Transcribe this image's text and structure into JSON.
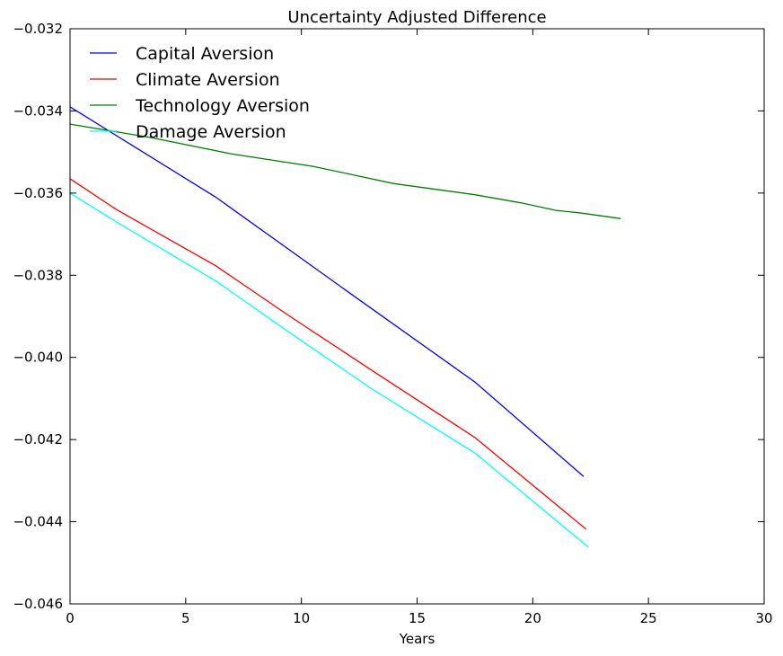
{
  "chart_data": {
    "type": "line",
    "title": "Uncertainty Adjusted Difference",
    "xlabel": "Years",
    "ylabel": "",
    "xlim": [
      0,
      30
    ],
    "ylim": [
      -0.046,
      -0.032
    ],
    "xticks": [
      0,
      5,
      10,
      15,
      20,
      25,
      30
    ],
    "xtick_labels": [
      "0",
      "5",
      "10",
      "15",
      "20",
      "25",
      "30"
    ],
    "yticks": [
      -0.046,
      -0.044,
      -0.042,
      -0.04,
      -0.038,
      -0.036,
      -0.034,
      -0.032
    ],
    "ytick_labels": [
      "−0.046",
      "−0.044",
      "−0.042",
      "−0.040",
      "−0.038",
      "−0.036",
      "−0.034",
      "−0.032"
    ],
    "grid": false,
    "legend_position": "top-left",
    "series": [
      {
        "name": "Capital Aversion",
        "color": "#0000ff",
        "x": [
          0,
          6.3,
          12.5,
          17.5,
          22.2
        ],
        "y": [
          -0.0339,
          -0.0361,
          -0.0386,
          -0.0406,
          -0.0429
        ]
      },
      {
        "name": "Climate Aversion",
        "color": "#ff0000",
        "x": [
          0,
          2.0,
          6.3,
          9.5,
          13.0,
          17.5,
          22.3
        ],
        "y": [
          -0.03565,
          -0.0364,
          -0.03777,
          -0.039,
          -0.0403,
          -0.04195,
          -0.04418
        ]
      },
      {
        "name": "Technology Aversion",
        "color": "#008000",
        "x": [
          0,
          3.5,
          7.0,
          10.5,
          14.0,
          17.5,
          19.5,
          21.0,
          22.0,
          23.8
        ],
        "y": [
          -0.03432,
          -0.03465,
          -0.03505,
          -0.03535,
          -0.03577,
          -0.03604,
          -0.03624,
          -0.03642,
          -0.03648,
          -0.03662
        ]
      },
      {
        "name": "Damage Aversion",
        "color": "#00ffff",
        "x": [
          0,
          2.0,
          6.3,
          9.5,
          13.0,
          17.5,
          22.4
        ],
        "y": [
          -0.036,
          -0.0367,
          -0.03814,
          -0.0394,
          -0.04075,
          -0.04233,
          -0.04462
        ]
      }
    ]
  }
}
